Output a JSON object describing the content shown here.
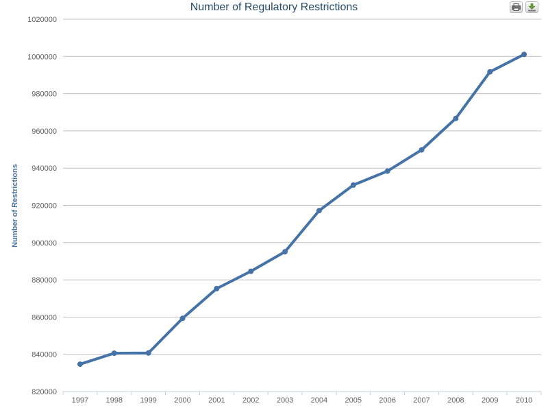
{
  "toolbar": {
    "print_icon": "print-icon",
    "export_icon": "download-icon"
  },
  "chart_data": {
    "type": "line",
    "title": "Number of Regulatory Restrictions",
    "xlabel": "",
    "ylabel": "Number of Restrictions",
    "categories": [
      "1997",
      "1998",
      "1999",
      "2000",
      "2001",
      "2002",
      "2003",
      "2004",
      "2005",
      "2006",
      "2007",
      "2008",
      "2009",
      "2010"
    ],
    "series": [
      {
        "values": [
          834700,
          840600,
          840700,
          859300,
          875300,
          884600,
          895100,
          917200,
          930900,
          938400,
          949800,
          966700,
          991700,
          1001100
        ]
      }
    ],
    "yticks": [
      "820000",
      "840000",
      "860000",
      "880000",
      "900000",
      "920000",
      "940000",
      "960000",
      "980000",
      "1000000",
      "1020000"
    ],
    "ylim": [
      820000,
      1020000
    ],
    "grid": true,
    "legend": "none",
    "colors": {
      "line": "#4572a7",
      "grid": "#c0c0c0",
      "title": "#274b6d",
      "axis_label": "#4d759e",
      "tick_label": "#606060"
    }
  }
}
